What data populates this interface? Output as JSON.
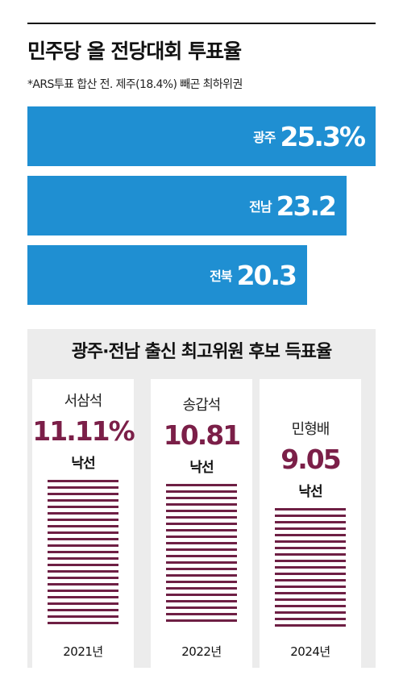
{
  "title": "민주당 올 전당대회 투표율",
  "subtitle": "*ARS투표 합산 전. 제주(18.4%) 빼곤 최하위권",
  "colors": {
    "turnout_bar": "#1f8fd2",
    "vote_share": "#7b1f48",
    "stripe": "#6e1f44",
    "panel_bg": "#ececec"
  },
  "chart_data": [
    {
      "type": "bar",
      "title": "민주당 올 전당대회 투표율",
      "subtitle": "*ARS투표 합산 전. 제주(18.4%) 빼곤 최하위권",
      "categories": [
        "광주",
        "전남",
        "전북"
      ],
      "values": [
        25.3,
        23.2,
        20.3
      ],
      "value_labels": [
        "25.3%",
        "23.2",
        "20.3"
      ],
      "orientation": "horizontal"
    },
    {
      "type": "bar",
      "title": "광주·전남 출신 최고위원 후보 득표율",
      "categories": [
        "2021년",
        "2022년",
        "2024년"
      ],
      "candidates": [
        "서삼석",
        "송갑석",
        "민형배"
      ],
      "values": [
        11.11,
        10.81,
        9.05
      ],
      "value_labels": [
        "11.11%",
        "10.81",
        "9.05"
      ],
      "results": [
        "낙선",
        "낙선",
        "낙선"
      ]
    }
  ]
}
